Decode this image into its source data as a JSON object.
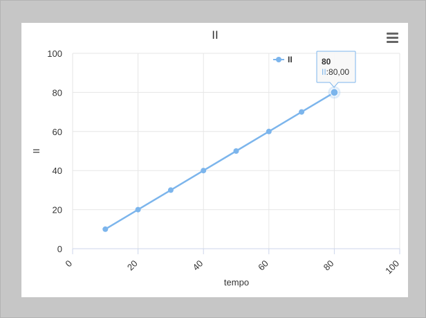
{
  "icons": {
    "menu": "hamburger-menu-icon"
  },
  "chart_data": {
    "type": "line",
    "title": "II",
    "xlabel": "tempo",
    "ylabel": "II",
    "xlim": [
      0,
      100
    ],
    "ylim": [
      0,
      100
    ],
    "x_ticks": [
      "0",
      "20",
      "40",
      "60",
      "80",
      "100"
    ],
    "y_ticks": [
      "0",
      "20",
      "40",
      "60",
      "80",
      "100"
    ],
    "grid": true,
    "legend_position": "top-right",
    "series": [
      {
        "name": "II",
        "color": "#7cb5ec",
        "x": [
          10,
          20,
          30,
          40,
          50,
          60,
          70,
          80
        ],
        "y": [
          10,
          20,
          30,
          40,
          50,
          60,
          70,
          80
        ]
      }
    ],
    "tooltip": {
      "header": "80",
      "series_label": "II",
      "separator": ":",
      "value": "80,00"
    }
  }
}
